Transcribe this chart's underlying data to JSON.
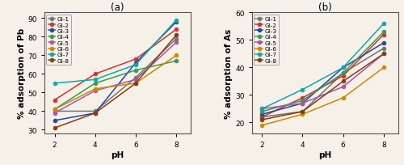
{
  "panel_a": {
    "title": "(a)",
    "xlabel": "pH",
    "ylabel": "% adsorption of Pb",
    "ylim": [
      28,
      93
    ],
    "yticks": [
      30,
      40,
      50,
      60,
      70,
      80,
      90
    ],
    "xticks": [
      2,
      4,
      6,
      8
    ],
    "xlim": [
      1.5,
      8.7
    ],
    "series": [
      {
        "name": "GI-1",
        "color": "#6b7b6b",
        "values": [
          40,
          40,
          58,
          79
        ]
      },
      {
        "name": "GI-2",
        "color": "#d43030",
        "values": [
          46,
          60,
          68,
          84
        ]
      },
      {
        "name": "GI-3",
        "color": "#2244aa",
        "values": [
          35,
          39,
          66,
          88
        ]
      },
      {
        "name": "GI-4",
        "color": "#3a9a50",
        "values": [
          41,
          55,
          62,
          67
        ]
      },
      {
        "name": "GI-5",
        "color": "#aa55aa",
        "values": [
          39,
          51,
          57,
          77
        ]
      },
      {
        "name": "GI-6",
        "color": "#cc8800",
        "values": [
          41,
          52,
          55,
          70
        ]
      },
      {
        "name": "GI-7",
        "color": "#10a8a8",
        "values": [
          55,
          57,
          65,
          89
        ]
      },
      {
        "name": "GI-8",
        "color": "#8b3a10",
        "values": [
          31,
          39,
          55,
          81
        ]
      }
    ]
  },
  "panel_b": {
    "title": "(b)",
    "xlabel": "pH",
    "ylabel": "% adsorption of As",
    "ylim": [
      16,
      60
    ],
    "yticks": [
      20,
      30,
      40,
      50,
      60
    ],
    "xticks": [
      2,
      4,
      6,
      8
    ],
    "xlim": [
      1.5,
      8.7
    ],
    "series": [
      {
        "name": "GI-1",
        "color": "#6b7b6b",
        "values": [
          22,
          24,
          38,
          47
        ]
      },
      {
        "name": "GI-2",
        "color": "#d43030",
        "values": [
          22,
          29,
          37,
          52
        ]
      },
      {
        "name": "GI-3",
        "color": "#2244aa",
        "values": [
          23,
          27,
          40,
          49
        ]
      },
      {
        "name": "GI-4",
        "color": "#3a9a50",
        "values": [
          24,
          28,
          38,
          53
        ]
      },
      {
        "name": "GI-5",
        "color": "#aa55aa",
        "values": [
          25,
          27,
          33,
          45
        ]
      },
      {
        "name": "GI-6",
        "color": "#cc8800",
        "values": [
          19,
          23,
          29,
          40
        ]
      },
      {
        "name": "GI-7",
        "color": "#10a8a8",
        "values": [
          25,
          32,
          40,
          56
        ]
      },
      {
        "name": "GI-8",
        "color": "#8b3a10",
        "values": [
          21,
          24,
          35,
          45
        ]
      }
    ]
  },
  "bg_color": "#f5f0e8",
  "figsize": [
    5.0,
    2.05
  ],
  "dpi": 100,
  "marker": "o",
  "markersize": 3.5,
  "linewidth": 1.1,
  "legend_fontsize": 5.2,
  "axis_label_fontsize": 7.5,
  "tick_fontsize": 6.5,
  "title_fontsize": 8.5
}
